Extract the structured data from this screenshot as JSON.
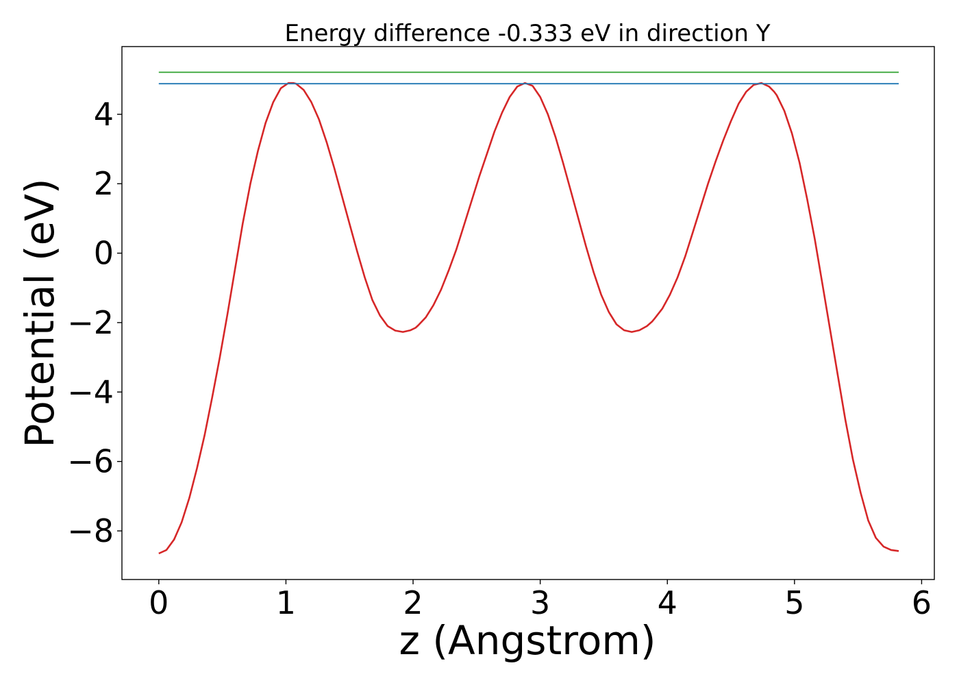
{
  "chart_data": {
    "type": "line",
    "title": "Energy difference -0.333 eV in direction Y",
    "xlabel": "z (Angstrom)",
    "ylabel": "Potential (eV)",
    "xlim": [
      -0.29,
      6.1
    ],
    "ylim": [
      -9.4,
      5.95
    ],
    "xticks": [
      0,
      1,
      2,
      3,
      4,
      5,
      6
    ],
    "yticks": [
      -8,
      -6,
      -4,
      -2,
      0,
      2,
      4
    ],
    "xtick_labels": [
      "0",
      "1",
      "2",
      "3",
      "4",
      "5",
      "6"
    ],
    "ytick_labels": [
      "−8",
      "−6",
      "−4",
      "−2",
      "0",
      "2",
      "4"
    ],
    "grid": false,
    "legend": "none",
    "series": [
      {
        "color": "#d62728",
        "x": [
          0.0,
          0.06,
          0.12,
          0.18,
          0.24,
          0.3,
          0.36,
          0.42,
          0.48,
          0.54,
          0.6,
          0.66,
          0.72,
          0.78,
          0.84,
          0.9,
          0.96,
          1.02,
          1.06,
          1.08,
          1.14,
          1.2,
          1.26,
          1.32,
          1.38,
          1.44,
          1.5,
          1.56,
          1.62,
          1.68,
          1.74,
          1.8,
          1.86,
          1.92,
          1.98,
          2.02,
          2.04,
          2.1,
          2.16,
          2.22,
          2.28,
          2.34,
          2.4,
          2.46,
          2.52,
          2.58,
          2.64,
          2.7,
          2.76,
          2.82,
          2.88,
          2.94,
          3.0,
          3.06,
          3.12,
          3.18,
          3.24,
          3.3,
          3.36,
          3.42,
          3.48,
          3.54,
          3.6,
          3.66,
          3.72,
          3.78,
          3.84,
          3.88,
          3.9,
          3.96,
          4.02,
          4.08,
          4.14,
          4.2,
          4.26,
          4.32,
          4.38,
          4.44,
          4.5,
          4.56,
          4.62,
          4.68,
          4.74,
          4.8,
          4.84,
          4.86,
          4.92,
          4.98,
          5.04,
          5.1,
          5.16,
          5.22,
          5.28,
          5.34,
          5.4,
          5.46,
          5.52,
          5.58,
          5.64,
          5.7,
          5.76,
          5.82
        ],
        "y": [
          -8.65,
          -8.55,
          -8.25,
          -7.75,
          -7.05,
          -6.2,
          -5.25,
          -4.15,
          -3.0,
          -1.75,
          -0.45,
          0.85,
          2.0,
          2.95,
          3.75,
          4.35,
          4.75,
          4.9,
          4.9,
          4.88,
          4.7,
          4.35,
          3.85,
          3.2,
          2.45,
          1.65,
          0.85,
          0.05,
          -0.7,
          -1.35,
          -1.8,
          -2.1,
          -2.23,
          -2.27,
          -2.22,
          -2.15,
          -2.08,
          -1.85,
          -1.5,
          -1.05,
          -0.5,
          0.1,
          0.8,
          1.5,
          2.2,
          2.85,
          3.5,
          4.05,
          4.5,
          4.8,
          4.9,
          4.82,
          4.5,
          4.0,
          3.35,
          2.6,
          1.8,
          1.0,
          0.2,
          -0.55,
          -1.2,
          -1.7,
          -2.05,
          -2.22,
          -2.27,
          -2.22,
          -2.1,
          -1.97,
          -1.88,
          -1.6,
          -1.2,
          -0.7,
          -0.1,
          0.6,
          1.3,
          2.0,
          2.65,
          3.25,
          3.8,
          4.3,
          4.65,
          4.85,
          4.9,
          4.8,
          4.65,
          4.55,
          4.1,
          3.45,
          2.6,
          1.55,
          0.4,
          -0.9,
          -2.2,
          -3.5,
          -4.8,
          -5.95,
          -6.9,
          -7.7,
          -8.2,
          -8.45,
          -8.55,
          -8.58
        ]
      },
      {
        "color": "#1f77b4",
        "x": [
          0.0,
          5.82
        ],
        "y": [
          4.88,
          4.88
        ]
      },
      {
        "color": "#2ca02c",
        "x": [
          0.0,
          5.82
        ],
        "y": [
          5.21,
          5.21
        ]
      }
    ]
  }
}
